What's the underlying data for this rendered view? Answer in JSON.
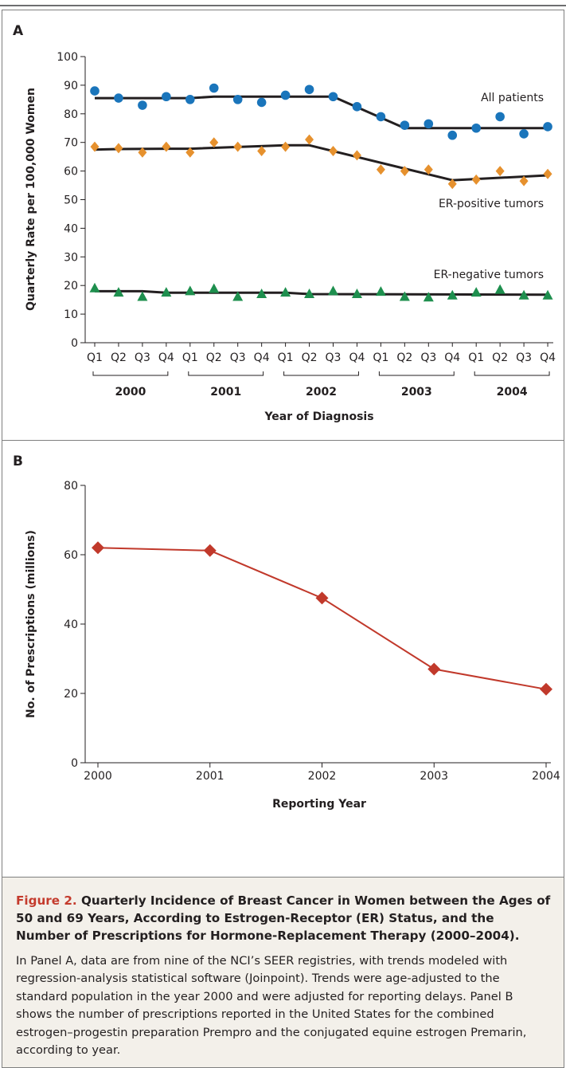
{
  "panels": [
    {
      "letter": "A"
    },
    {
      "letter": "B"
    }
  ],
  "chart_data": [
    {
      "panel": "A",
      "type": "scatter",
      "ylabel": "Quarterly Rate per 100,000 Women",
      "xlabel": "Year of Diagnosis",
      "ylim": [
        0,
        100
      ],
      "yticks": [
        "0",
        "10",
        "20",
        "30",
        "40",
        "50",
        "60",
        "70",
        "80",
        "90",
        "100"
      ],
      "quarter_labels": [
        "Q1",
        "Q2",
        "Q3",
        "Q4"
      ],
      "year_groups": [
        "2000",
        "2001",
        "2002",
        "2003",
        "2004"
      ],
      "series": [
        {
          "name": "All patients",
          "marker": "circle",
          "color": "#1a75bb",
          "points": [
            88,
            85.5,
            83,
            86,
            85,
            89,
            85,
            84,
            86.5,
            88.5,
            86,
            82.5,
            79,
            76,
            76.5,
            72.5,
            75,
            79,
            73,
            75.5
          ],
          "trend": [
            {
              "q": 1,
              "v": 85.5
            },
            {
              "q": 5,
              "v": 85.5
            },
            {
              "q": 6,
              "v": 86
            },
            {
              "q": 11,
              "v": 86
            },
            {
              "q": 14,
              "v": 75
            },
            {
              "q": 20,
              "v": 75
            }
          ]
        },
        {
          "name": "ER-positive tumors",
          "marker": "diamond",
          "color": "#e6912e",
          "points": [
            68.5,
            68,
            66.5,
            68.5,
            66.5,
            70,
            68.5,
            67,
            68.5,
            71,
            67,
            65.5,
            60.5,
            60,
            60.5,
            55.5,
            57,
            60,
            56.5,
            59
          ],
          "trend": [
            {
              "q": 1,
              "v": 67.5
            },
            {
              "q": 2,
              "v": 67.7
            },
            {
              "q": 4,
              "v": 67.8
            },
            {
              "q": 5,
              "v": 67.8
            },
            {
              "q": 9,
              "v": 69
            },
            {
              "q": 10,
              "v": 69
            },
            {
              "q": 16,
              "v": 56.8
            },
            {
              "q": 20,
              "v": 58.5
            }
          ]
        },
        {
          "name": "ER-negative tumors",
          "marker": "triangle",
          "color": "#1e8f4e",
          "points": [
            19,
            17.5,
            16,
            17.5,
            18,
            18.8,
            16,
            17,
            17.5,
            17,
            18,
            17,
            17.8,
            16,
            15.8,
            16.5,
            17.5,
            18.5,
            16.5,
            16.5
          ],
          "trend": [
            {
              "q": 1,
              "v": 18
            },
            {
              "q": 3,
              "v": 18
            },
            {
              "q": 4,
              "v": 17.5
            },
            {
              "q": 9,
              "v": 17.5
            },
            {
              "q": 10,
              "v": 17
            },
            {
              "q": 20,
              "v": 16.8
            }
          ]
        }
      ]
    },
    {
      "panel": "B",
      "type": "line",
      "ylabel": "No. of Prescriptions (millions)",
      "xlabel": "Reporting Year",
      "ylim": [
        0,
        80
      ],
      "yticks": [
        "0",
        "20",
        "40",
        "60",
        "80"
      ],
      "categories": [
        "2000",
        "2001",
        "2002",
        "2003",
        "2004"
      ],
      "series": [
        {
          "color": "#c1392b",
          "values": [
            62,
            61.2,
            47.5,
            27,
            21.2
          ]
        }
      ]
    }
  ],
  "caption": {
    "figure_label": "Figure 2.",
    "title": "Quarterly Incidence of Breast Cancer in Women between the Ages of 50 and 69 Years, According to Estrogen-Receptor (ER) Status, and the Number of Prescriptions for Hormone-Replacement Therapy (2000–2004).",
    "body": "In Panel A, data are from nine of the NCI’s SEER registries, with trends modeled with regression-analysis statistical software (Joinpoint). Trends were age-adjusted to the standard population in the year 2000 and were adjusted for reporting delays. Panel B shows the number of prescriptions reported in the United States for the combined estrogen–progestin preparation Prempro and the conjugated equine estrogen Premarin, according to year."
  }
}
